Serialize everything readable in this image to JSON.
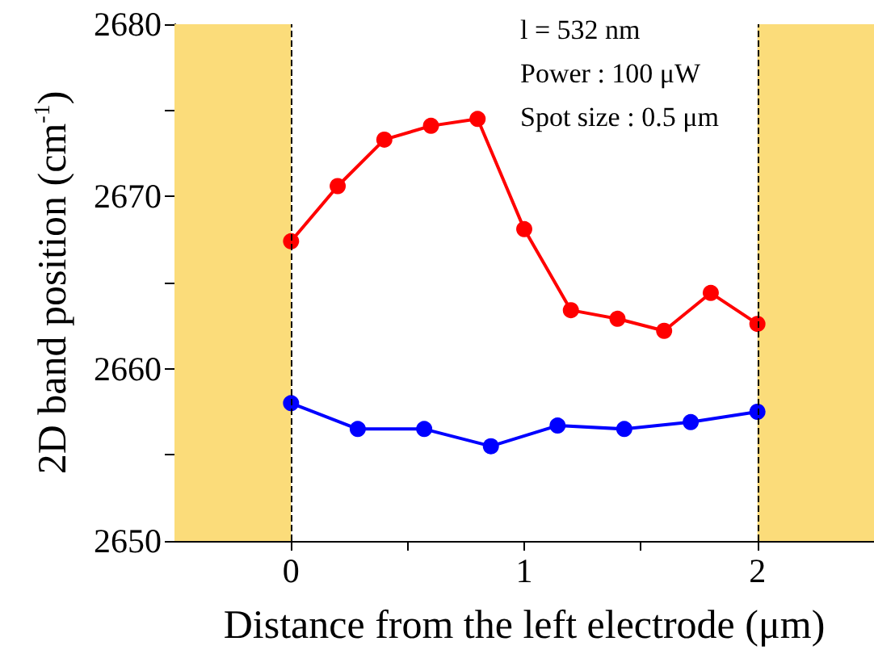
{
  "chart_data": {
    "type": "line",
    "xlabel": "Distance from the left electrode (μm)",
    "ylabel": "2D band position (cm$^{-1}$)",
    "annotations": [
      "l = 532 nm",
      "Power : 100 μW",
      "Spot size : 0.5 μm"
    ],
    "series": [
      {
        "color": "#ff0000",
        "x": [
          0,
          0.2,
          0.4,
          0.6,
          0.8,
          1.0,
          1.2,
          1.4,
          1.6,
          1.8,
          2.0
        ],
        "values": [
          2667.4,
          2670.6,
          2673.3,
          2674.1,
          2674.5,
          2668.1,
          2663.4,
          2662.9,
          2662.2,
          2664.4,
          2662.6
        ]
      },
      {
        "color": "#0000ff",
        "x": [
          0,
          0.286,
          0.571,
          0.857,
          1.143,
          1.429,
          1.714,
          2.0
        ],
        "values": [
          2658.0,
          2656.5,
          2656.5,
          2655.5,
          2656.7,
          2656.5,
          2656.9,
          2657.5
        ]
      }
    ],
    "xlim": [
      -0.5,
      2.5
    ],
    "xticks": [
      0,
      {
        "value": 0.5,
        "label": null
      },
      1,
      {
        "value": 1.5,
        "label": null
      },
      2
    ],
    "ylim": [
      2650,
      2680
    ],
    "yticks": [
      2650,
      {
        "value": 2655,
        "label": null
      },
      2660,
      {
        "value": 2665,
        "label": null
      },
      2670,
      {
        "value": 2675,
        "label": null
      },
      2680
    ],
    "bands": [
      {
        "axis": "x",
        "from": -0.5,
        "to": 0,
        "color": "#fbdc7a"
      },
      {
        "axis": "x",
        "from": 2,
        "to": 2.5,
        "color": "#fbdc7a"
      }
    ],
    "ref_lines": [
      {
        "axis": "x",
        "value": 0,
        "line_style": "dashed",
        "color": "#000000"
      },
      {
        "axis": "x",
        "value": 2,
        "line_style": "dashed",
        "color": "#000000"
      }
    ],
    "marker": "circle",
    "line_style": "solid",
    "grid": false
  }
}
